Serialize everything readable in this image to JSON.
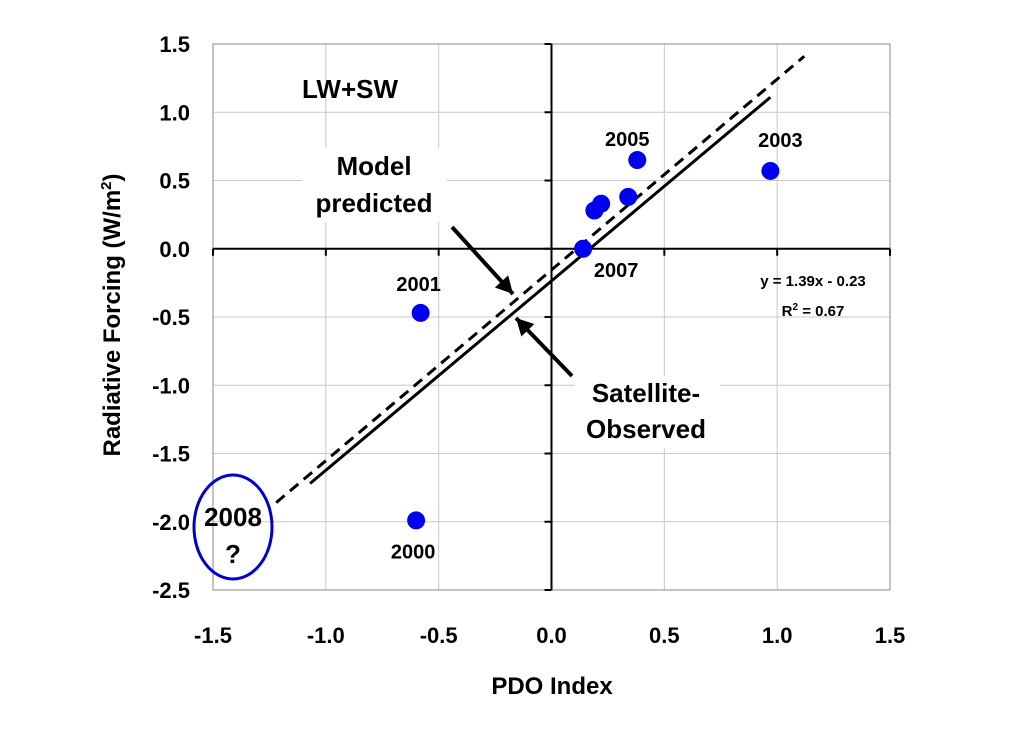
{
  "chart_data": {
    "type": "scatter",
    "title": "",
    "xlabel": "PDO Index",
    "ylabel": "Radiative Forcing (W/m",
    "ylabel_sup": "2",
    "ylabel_end": ")",
    "xlim": [
      -1.5,
      1.5
    ],
    "ylim": [
      -2.5,
      1.5
    ],
    "x_ticks": [
      -1.5,
      -1.0,
      -0.5,
      0.0,
      0.5,
      1.0,
      1.5
    ],
    "x_tick_labels": [
      "-1.5",
      "-1.0",
      "-0.5",
      "0.0",
      "0.5",
      "1.0",
      "1.5"
    ],
    "y_ticks": [
      1.5,
      1.0,
      0.5,
      0.0,
      -0.5,
      -1.0,
      -1.5,
      -2.0,
      -2.5
    ],
    "y_tick_labels": [
      "1.5",
      "1.0",
      "0.5",
      "0.0",
      "-0.5",
      "-1.0",
      "-1.5",
      "-2.0",
      "-2.5"
    ],
    "grid": true,
    "points": [
      {
        "x": -0.58,
        "y": -0.47,
        "label": "2001"
      },
      {
        "x": -0.6,
        "y": -1.99,
        "label": "2000"
      },
      {
        "x": 0.14,
        "y": 0.0,
        "label": "2007"
      },
      {
        "x": 0.19,
        "y": 0.28,
        "label": ""
      },
      {
        "x": 0.22,
        "y": 0.33,
        "label": ""
      },
      {
        "x": 0.34,
        "y": 0.38,
        "label": ""
      },
      {
        "x": 0.38,
        "y": 0.65,
        "label": "2005"
      },
      {
        "x": 0.97,
        "y": 0.57,
        "label": "2003"
      }
    ],
    "marker_color": "#0000ee",
    "series": [
      {
        "name": "Satellite-Observed",
        "style": "solid",
        "x": [
          -1.07,
          0.97
        ],
        "y": [
          -1.72,
          1.11
        ]
      },
      {
        "name": "Model predicted",
        "style": "dashed",
        "x": [
          -1.22,
          1.12
        ],
        "y": [
          -1.86,
          1.41
        ]
      }
    ],
    "panel_label": "LW+SW",
    "equation": "y = 1.39x - 0.23",
    "r2_prefix": "R",
    "r2_sup": "2",
    "r2_suffix": " = 0.67",
    "annotations": {
      "model_line1": "Model",
      "model_line2": "predicted",
      "sat_line1": "Satellite-",
      "sat_line2": "Observed",
      "year_2008": "2008",
      "question": "?"
    },
    "ellipse_color": "#0000cc"
  }
}
